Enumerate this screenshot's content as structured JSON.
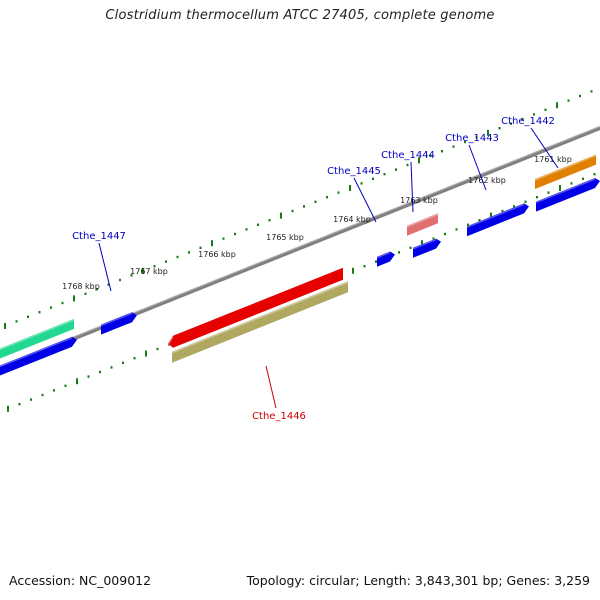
{
  "title": "Clostridium thermocellum ATCC 27405, complete genome",
  "footer": {
    "accession": "Accession: NC_009012",
    "summary": "Topology: circular; Length: 3,843,301 bp; Genes: 3,259"
  },
  "colors": {
    "backbone": "#808080",
    "tick": "#1a7a1a",
    "blue_gene": "#0000e6",
    "red_gene": "#e60000",
    "pink_gene": "#e07070",
    "orange_gene": "#e08000",
    "green_gene": "#20d890",
    "olive_gene": "#b0a860",
    "label_blue": "#0000c0",
    "label_red": "#cc0000"
  },
  "scale_labels": [
    {
      "text": "1768 kbp"
    },
    {
      "text": "1767 kbp"
    },
    {
      "text": "1766 kbp"
    },
    {
      "text": "1765 kbp"
    },
    {
      "text": "1764 kbp"
    },
    {
      "text": "1763 kbp"
    },
    {
      "text": "1762 kbp"
    },
    {
      "text": "1761 kbp"
    }
  ],
  "gene_labels": [
    {
      "text": "Cthe_1447",
      "color": "blue"
    },
    {
      "text": "Cthe_1445",
      "color": "blue"
    },
    {
      "text": "Cthe_1444",
      "color": "blue"
    },
    {
      "text": "Cthe_1443",
      "color": "blue"
    },
    {
      "text": "Cthe_1442",
      "color": "blue"
    },
    {
      "text": "Cthe_1446",
      "color": "red"
    }
  ]
}
